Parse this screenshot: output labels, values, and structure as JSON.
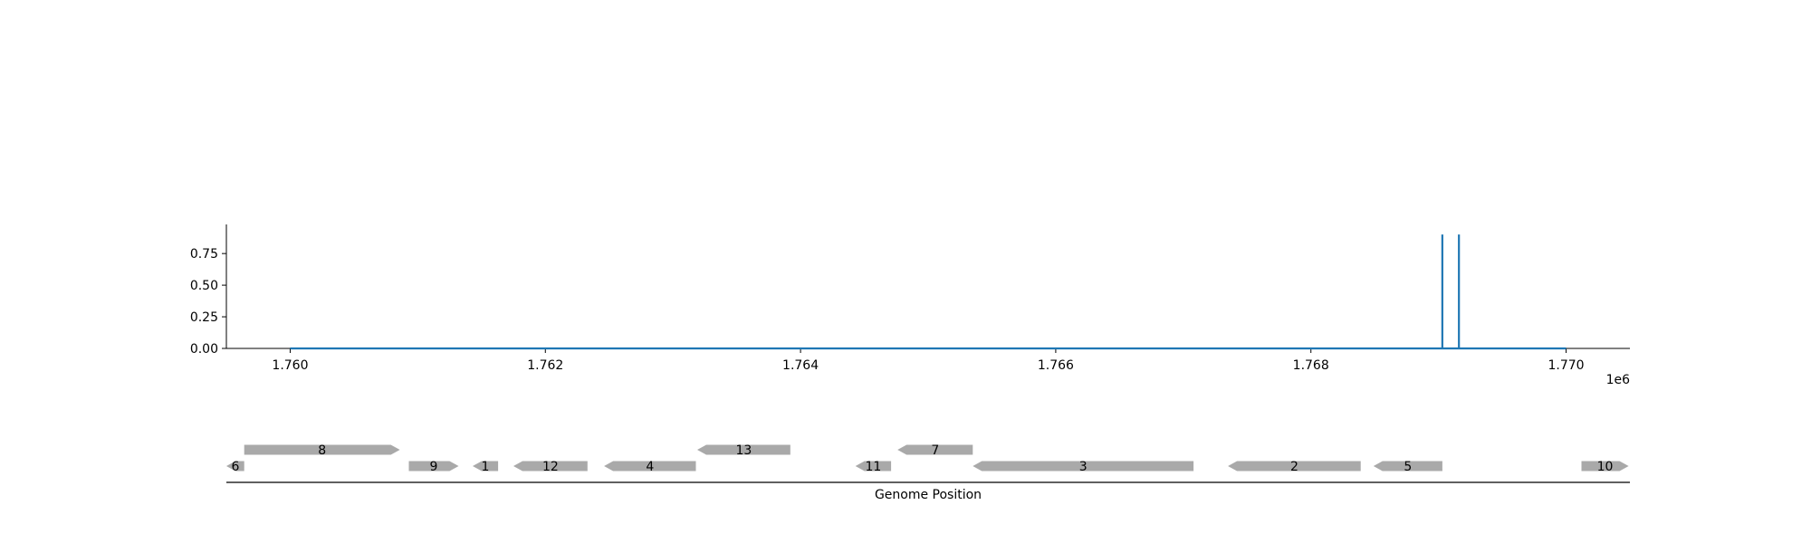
{
  "chart_data": [
    {
      "type": "line",
      "title": "",
      "xlabel": "",
      "ylabel": "",
      "x_offset_label": "1e6",
      "xlim": [
        1759500,
        1770500
      ],
      "ylim": [
        0,
        0.98
      ],
      "x_ticks": [
        1760000,
        1762000,
        1764000,
        1766000,
        1768000,
        1770000
      ],
      "x_tick_labels": [
        "1.760",
        "1.762",
        "1.764",
        "1.766",
        "1.768",
        "1.770"
      ],
      "y_ticks": [
        0,
        0.25,
        0.5,
        0.75
      ],
      "y_tick_labels": [
        "0.00",
        "0.25",
        "0.50",
        "0.75"
      ],
      "grid": false,
      "line_color": "#1f77b4",
      "series": [
        {
          "x": [
            1760000,
            1769030,
            1769030,
            1769030,
            1769160,
            1769160,
            1769160,
            1770000
          ],
          "y": [
            0,
            0,
            0.9,
            0,
            0,
            0.9,
            0,
            0
          ]
        }
      ]
    },
    {
      "type": "gene-map",
      "xlabel": "Genome Position",
      "xlim": [
        1759500,
        1770500
      ],
      "feature_color": "#a9a9a9",
      "genes": [
        {
          "label": "6",
          "start": 1759500,
          "end": 1759640,
          "strand": -1,
          "row": 0
        },
        {
          "label": "8",
          "start": 1759640,
          "end": 1760860,
          "strand": 1,
          "row": 1
        },
        {
          "label": "9",
          "start": 1760930,
          "end": 1761320,
          "strand": 1,
          "row": 0
        },
        {
          "label": "1",
          "start": 1761430,
          "end": 1761630,
          "strand": -1,
          "row": 0
        },
        {
          "label": "12",
          "start": 1761750,
          "end": 1762330,
          "strand": -1,
          "row": 0
        },
        {
          "label": "4",
          "start": 1762460,
          "end": 1763180,
          "strand": -1,
          "row": 0
        },
        {
          "label": "13",
          "start": 1763190,
          "end": 1763920,
          "strand": -1,
          "row": 1
        },
        {
          "label": "11",
          "start": 1764430,
          "end": 1764710,
          "strand": -1,
          "row": 0
        },
        {
          "label": "7",
          "start": 1764760,
          "end": 1765350,
          "strand": -1,
          "row": 1
        },
        {
          "label": "3",
          "start": 1765350,
          "end": 1767080,
          "strand": -1,
          "row": 0
        },
        {
          "label": "2",
          "start": 1767350,
          "end": 1768390,
          "strand": -1,
          "row": 0
        },
        {
          "label": "5",
          "start": 1768490,
          "end": 1769030,
          "strand": -1,
          "row": 0
        },
        {
          "label": "10",
          "start": 1770120,
          "end": 1770490,
          "strand": 1,
          "row": 0
        }
      ]
    }
  ]
}
